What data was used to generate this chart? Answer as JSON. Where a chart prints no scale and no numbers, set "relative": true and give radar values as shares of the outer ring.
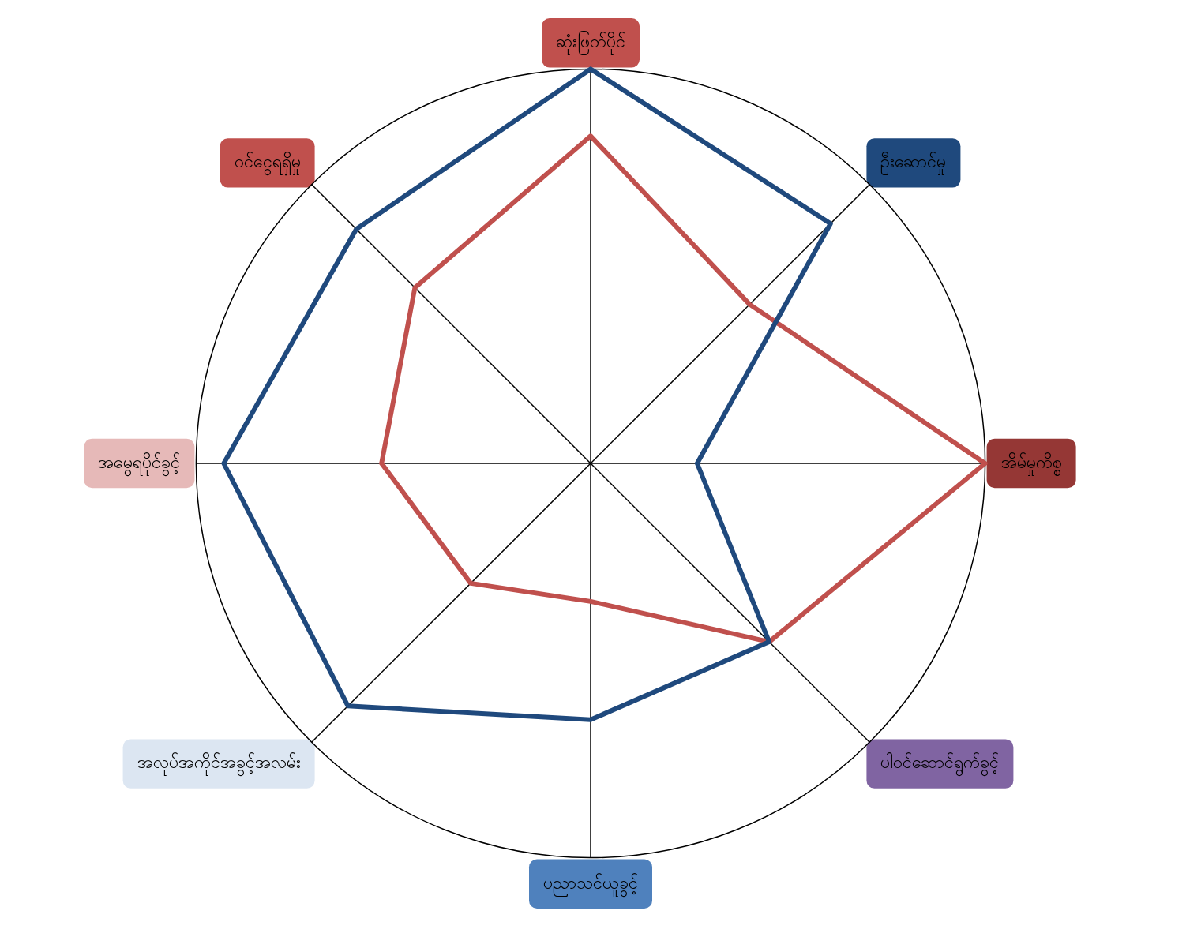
{
  "chart_data": {
    "type": "radar",
    "relative": true,
    "legend": false,
    "grid": true,
    "marker": "none",
    "categories": [
      "ဆုံးဖြတ်ပိုင်",
      "ဦးဆောင်မှု",
      "အိမ်မှုကိစ္စ",
      "ပါဝင်ဆောင်ရွက်ခွင့်",
      "ပညာသင်ယူခွင့်",
      "အလုပ်အကိုင်အခွင့်အလမ်း",
      "အမွေရပိုင်ခွင့်",
      "ဝင်ငွေရရှိမှု"
    ],
    "series": [
      {
        "color": "#1f497d",
        "values": [
          1.0,
          0.86,
          0.27,
          0.64,
          0.65,
          0.87,
          0.93,
          0.84
        ]
      },
      {
        "color": "#c0504d",
        "values": [
          0.83,
          0.57,
          1.0,
          0.64,
          0.35,
          0.43,
          0.53,
          0.63
        ]
      }
    ]
  }
}
